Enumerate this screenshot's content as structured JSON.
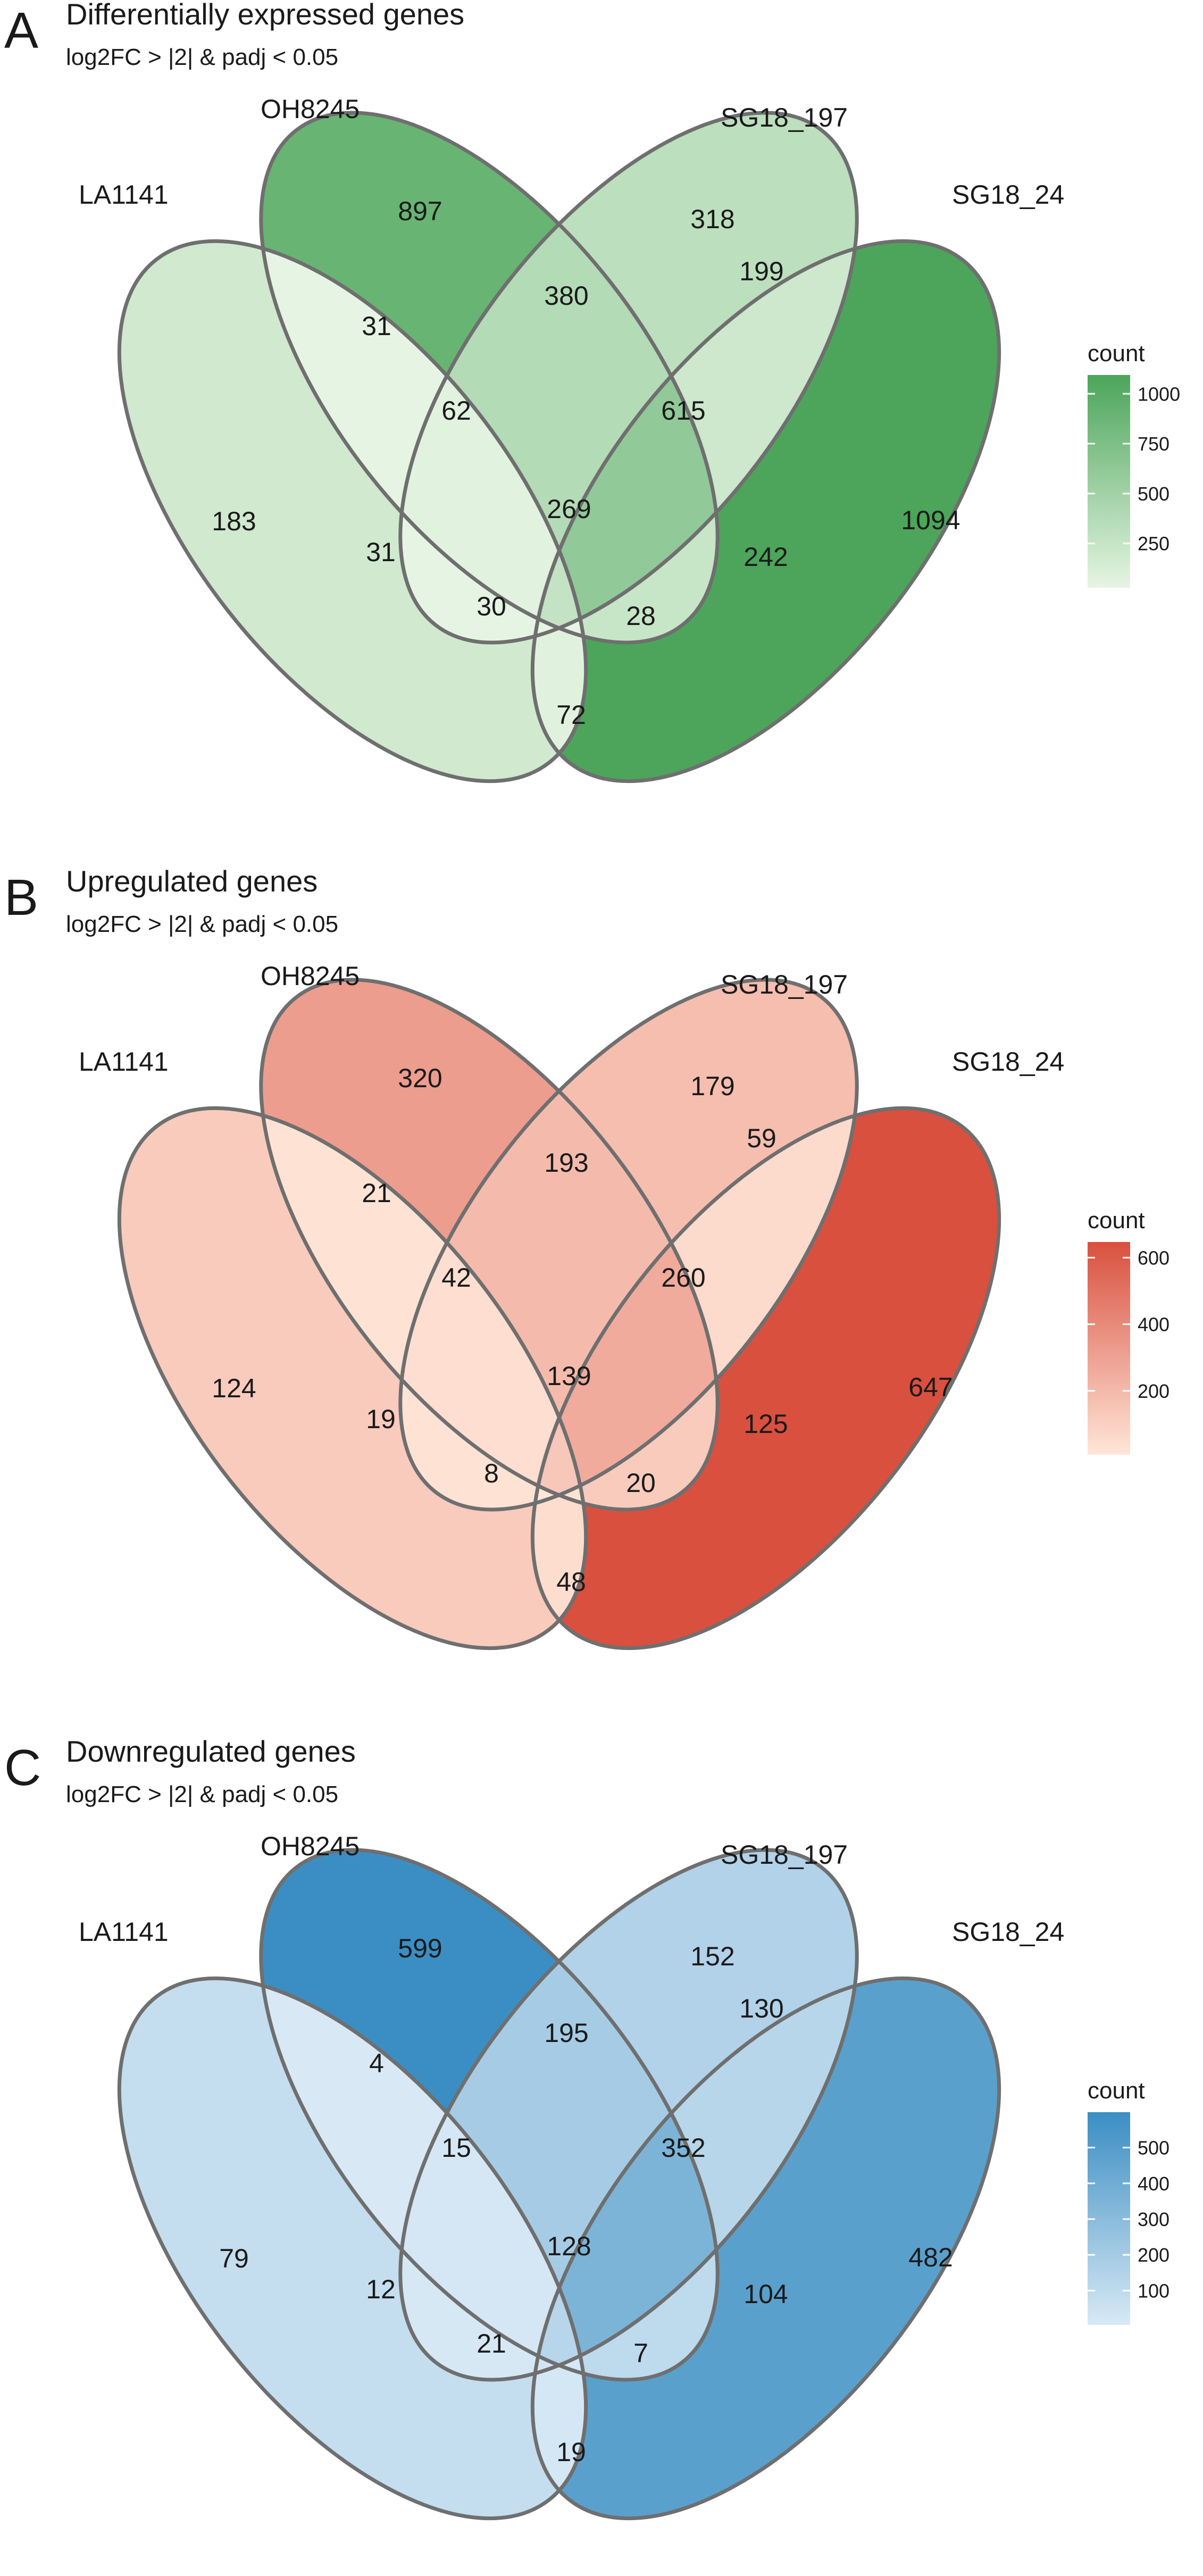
{
  "chart_data": [
    {
      "type": "venn",
      "panel": "A",
      "title": "Differentially expressed genes",
      "subtitle": "log2FC > |2| & padj < 0.05",
      "sets": [
        "LA1141",
        "OH8245",
        "SG18_197",
        "SG18_24"
      ],
      "regions": [
        {
          "sets": [
            "LA1141"
          ],
          "count": 183
        },
        {
          "sets": [
            "OH8245"
          ],
          "count": 897
        },
        {
          "sets": [
            "SG18_197"
          ],
          "count": 318
        },
        {
          "sets": [
            "SG18_24"
          ],
          "count": 1094
        },
        {
          "sets": [
            "LA1141",
            "OH8245"
          ],
          "count": 31
        },
        {
          "sets": [
            "OH8245",
            "SG18_197"
          ],
          "count": 380
        },
        {
          "sets": [
            "SG18_197",
            "SG18_24"
          ],
          "count": 199
        },
        {
          "sets": [
            "LA1141",
            "SG18_197"
          ],
          "count": 31
        },
        {
          "sets": [
            "OH8245",
            "SG18_24"
          ],
          "count": 242
        },
        {
          "sets": [
            "LA1141",
            "SG18_24"
          ],
          "count": 72
        },
        {
          "sets": [
            "LA1141",
            "OH8245",
            "SG18_197"
          ],
          "count": 62
        },
        {
          "sets": [
            "OH8245",
            "SG18_197",
            "SG18_24"
          ],
          "count": 615
        },
        {
          "sets": [
            "LA1141",
            "SG18_197",
            "SG18_24"
          ],
          "count": 30
        },
        {
          "sets": [
            "LA1141",
            "OH8245",
            "SG18_24"
          ],
          "count": 28
        },
        {
          "sets": [
            "LA1141",
            "OH8245",
            "SG18_197",
            "SG18_24"
          ],
          "count": 269
        }
      ],
      "legend": {
        "title": "count",
        "ticks": [
          "1000",
          "750",
          "500",
          "250"
        ],
        "tick_values": [
          1000,
          750,
          500,
          250
        ],
        "range": [
          28,
          1094
        ],
        "color_low": "#e6f5e3",
        "color_high": "#4ca55a"
      }
    },
    {
      "type": "venn",
      "panel": "B",
      "title": "Upregulated genes",
      "subtitle": "log2FC > |2| & padj < 0.05",
      "sets": [
        "LA1141",
        "OH8245",
        "SG18_197",
        "SG18_24"
      ],
      "regions": [
        {
          "sets": [
            "LA1141"
          ],
          "count": 124
        },
        {
          "sets": [
            "OH8245"
          ],
          "count": 320
        },
        {
          "sets": [
            "SG18_197"
          ],
          "count": 179
        },
        {
          "sets": [
            "SG18_24"
          ],
          "count": 647
        },
        {
          "sets": [
            "LA1141",
            "OH8245"
          ],
          "count": 21
        },
        {
          "sets": [
            "OH8245",
            "SG18_197"
          ],
          "count": 193
        },
        {
          "sets": [
            "SG18_197",
            "SG18_24"
          ],
          "count": 59
        },
        {
          "sets": [
            "LA1141",
            "SG18_197"
          ],
          "count": 19
        },
        {
          "sets": [
            "OH8245",
            "SG18_24"
          ],
          "count": 125
        },
        {
          "sets": [
            "LA1141",
            "SG18_24"
          ],
          "count": 48
        },
        {
          "sets": [
            "LA1141",
            "OH8245",
            "SG18_197"
          ],
          "count": 42
        },
        {
          "sets": [
            "OH8245",
            "SG18_197",
            "SG18_24"
          ],
          "count": 260
        },
        {
          "sets": [
            "LA1141",
            "SG18_197",
            "SG18_24"
          ],
          "count": 8
        },
        {
          "sets": [
            "LA1141",
            "OH8245",
            "SG18_24"
          ],
          "count": 20
        },
        {
          "sets": [
            "LA1141",
            "OH8245",
            "SG18_197",
            "SG18_24"
          ],
          "count": 139
        }
      ],
      "legend": {
        "title": "count",
        "ticks": [
          "600",
          "400",
          "200"
        ],
        "tick_values": [
          600,
          400,
          200
        ],
        "range": [
          8,
          647
        ],
        "color_low": "#ffe6d8",
        "color_high": "#d9503f"
      }
    },
    {
      "type": "venn",
      "panel": "C",
      "title": "Downregulated genes",
      "subtitle": "log2FC > |2| & padj < 0.05",
      "sets": [
        "LA1141",
        "OH8245",
        "SG18_197",
        "SG18_24"
      ],
      "regions": [
        {
          "sets": [
            "LA1141"
          ],
          "count": 79
        },
        {
          "sets": [
            "OH8245"
          ],
          "count": 599
        },
        {
          "sets": [
            "SG18_197"
          ],
          "count": 152
        },
        {
          "sets": [
            "SG18_24"
          ],
          "count": 482
        },
        {
          "sets": [
            "LA1141",
            "OH8245"
          ],
          "count": 4
        },
        {
          "sets": [
            "OH8245",
            "SG18_197"
          ],
          "count": 195
        },
        {
          "sets": [
            "SG18_197",
            "SG18_24"
          ],
          "count": 130
        },
        {
          "sets": [
            "LA1141",
            "SG18_197"
          ],
          "count": 12
        },
        {
          "sets": [
            "OH8245",
            "SG18_24"
          ],
          "count": 104
        },
        {
          "sets": [
            "LA1141",
            "SG18_24"
          ],
          "count": 19
        },
        {
          "sets": [
            "LA1141",
            "OH8245",
            "SG18_197"
          ],
          "count": 15
        },
        {
          "sets": [
            "OH8245",
            "SG18_197",
            "SG18_24"
          ],
          "count": 352
        },
        {
          "sets": [
            "LA1141",
            "SG18_197",
            "SG18_24"
          ],
          "count": 21
        },
        {
          "sets": [
            "LA1141",
            "OH8245",
            "SG18_24"
          ],
          "count": 7
        },
        {
          "sets": [
            "LA1141",
            "OH8245",
            "SG18_197",
            "SG18_24"
          ],
          "count": 128
        }
      ],
      "legend": {
        "title": "count",
        "ticks": [
          "500",
          "400",
          "300",
          "200",
          "100"
        ],
        "tick_values": [
          500,
          400,
          300,
          200,
          100
        ],
        "range": [
          4,
          599
        ],
        "color_low": "#d8e9f5",
        "color_high": "#3b8ec3"
      }
    }
  ]
}
